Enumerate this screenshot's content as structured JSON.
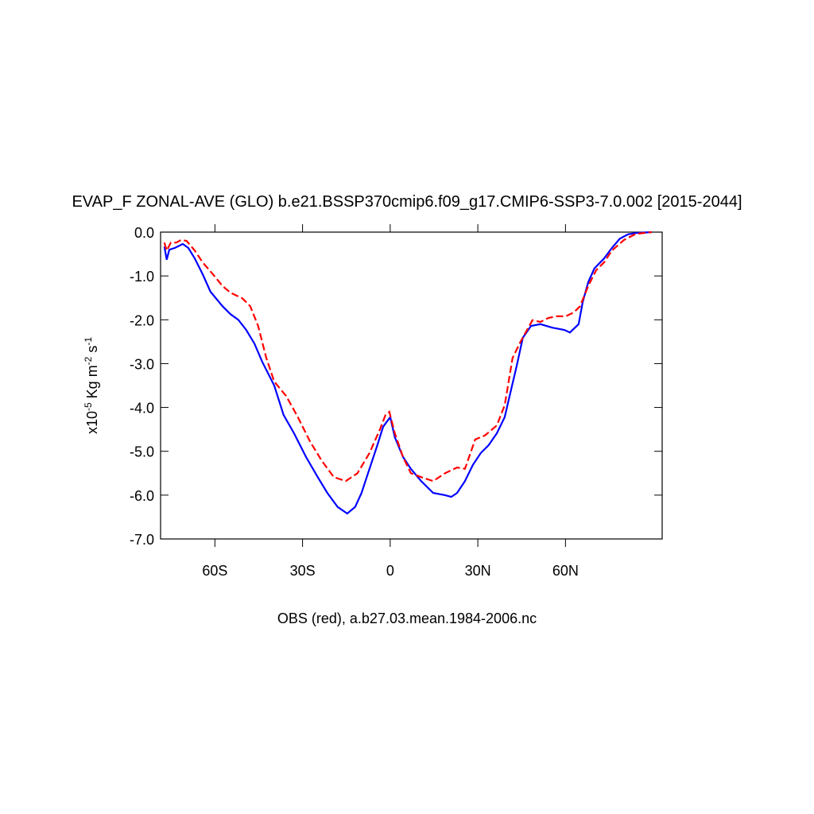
{
  "chart_data": {
    "type": "line",
    "title": "EVAP_F ZONAL-AVE (GLO) b.e21.BSSP370cmip6.f09_g17.CMIP6-SSP3-7.0.002 [2015-2044]",
    "y_label": [
      {
        "text": "x10"
      },
      {
        "text": "-5",
        "sup": true
      },
      {
        "text": " Kg m"
      },
      {
        "text": "-2",
        "sup": true
      },
      {
        "text": " s"
      },
      {
        "text": "-1",
        "sup": true
      }
    ],
    "note": "OBS (red), a.b27.03.mean.1984-2006.nc",
    "xlim": [
      -78.6,
      93.1
    ],
    "xticks": [
      {
        "value": -60,
        "label": "60S"
      },
      {
        "value": -30,
        "label": "30S"
      },
      0,
      {
        "value": 30,
        "label": "30N"
      },
      {
        "value": 60,
        "label": "60N"
      }
    ],
    "ylim": [
      -7,
      0
    ],
    "yticks": [
      {
        "value": 0,
        "label": "0.0"
      },
      {
        "value": -1,
        "label": "-1.0"
      },
      {
        "value": -2,
        "label": "-2.0"
      },
      {
        "value": -3,
        "label": "-3.0"
      },
      {
        "value": -4,
        "label": "-4.0"
      },
      {
        "value": -5,
        "label": "-5.0"
      },
      {
        "value": -6,
        "label": "-6.0"
      },
      {
        "value": -7,
        "label": "-7.0"
      }
    ],
    "series": [
      {
        "color": "#0000ff",
        "dashed": false,
        "x": [
          -77.3,
          -76.5,
          -75.6,
          -73.7,
          -71.0,
          -69.1,
          -66.9,
          -64.2,
          -61.5,
          -57.4,
          -54.7,
          -52.0,
          -49.3,
          -46.5,
          -43.8,
          -39.7,
          -36.5,
          -32.9,
          -28.8,
          -24.8,
          -21.5,
          -18.0,
          -14.7,
          -12.0,
          -9.8,
          -7.1,
          -4.4,
          -2.4,
          0,
          1.6,
          4.4,
          7.1,
          10.6,
          14.7,
          18.8,
          20.9,
          22.9,
          25.6,
          28.3,
          31.0,
          33.7,
          36.5,
          39.2,
          41.4,
          43.3,
          45.4,
          48.2,
          51.4,
          55.5,
          59.6,
          61.5,
          64.5,
          65.9,
          67.8,
          69.9,
          73.2,
          75.9,
          78.6,
          81.4,
          84.1,
          89.5
        ],
        "values": [
          -0.33,
          -0.63,
          -0.4,
          -0.36,
          -0.27,
          -0.36,
          -0.6,
          -0.96,
          -1.36,
          -1.69,
          -1.87,
          -2.0,
          -2.23,
          -2.54,
          -2.96,
          -3.5,
          -4.17,
          -4.59,
          -5.13,
          -5.59,
          -5.95,
          -6.27,
          -6.42,
          -6.27,
          -5.95,
          -5.4,
          -4.86,
          -4.44,
          -4.22,
          -4.68,
          -5.13,
          -5.4,
          -5.68,
          -5.95,
          -6.0,
          -6.04,
          -5.95,
          -5.68,
          -5.31,
          -5.04,
          -4.86,
          -4.59,
          -4.22,
          -3.59,
          -3.05,
          -2.41,
          -2.14,
          -2.1,
          -2.18,
          -2.23,
          -2.29,
          -2.1,
          -1.6,
          -1.14,
          -0.83,
          -0.6,
          -0.36,
          -0.15,
          -0.05,
          -0.02,
          0
        ]
      },
      {
        "color": "#ff0000",
        "dashed": true,
        "x": [
          -77.3,
          -76.5,
          -75.1,
          -73.2,
          -71.6,
          -69.7,
          -66.9,
          -64.2,
          -60.7,
          -57.4,
          -54.7,
          -50.6,
          -47.9,
          -45.2,
          -42.4,
          -39.7,
          -35.6,
          -31.6,
          -27.5,
          -23.4,
          -19.3,
          -15.2,
          -11.2,
          -7.1,
          -3.5,
          -1.6,
          -0.3,
          1.6,
          4.4,
          7.1,
          10.6,
          14.7,
          18.8,
          22.9,
          25.6,
          29.1,
          32.4,
          36.5,
          39.2,
          41.9,
          44.6,
          48.7,
          51.4,
          54.1,
          56.9,
          60.1,
          62.9,
          65.0,
          67.8,
          70.5,
          73.2,
          75.9,
          80.0,
          84.1,
          89.5
        ],
        "values": [
          -0.24,
          -0.42,
          -0.24,
          -0.24,
          -0.18,
          -0.2,
          -0.42,
          -0.69,
          -0.96,
          -1.23,
          -1.38,
          -1.51,
          -1.69,
          -2.14,
          -2.87,
          -3.41,
          -3.74,
          -4.22,
          -4.77,
          -5.22,
          -5.59,
          -5.68,
          -5.5,
          -5.04,
          -4.5,
          -4.17,
          -4.1,
          -4.59,
          -5.13,
          -5.5,
          -5.59,
          -5.68,
          -5.5,
          -5.37,
          -5.4,
          -4.73,
          -4.64,
          -4.41,
          -3.95,
          -2.87,
          -2.5,
          -2.01,
          -2.05,
          -1.96,
          -1.92,
          -1.92,
          -1.83,
          -1.69,
          -1.23,
          -0.87,
          -0.69,
          -0.42,
          -0.18,
          -0.04,
          0
        ]
      }
    ]
  }
}
